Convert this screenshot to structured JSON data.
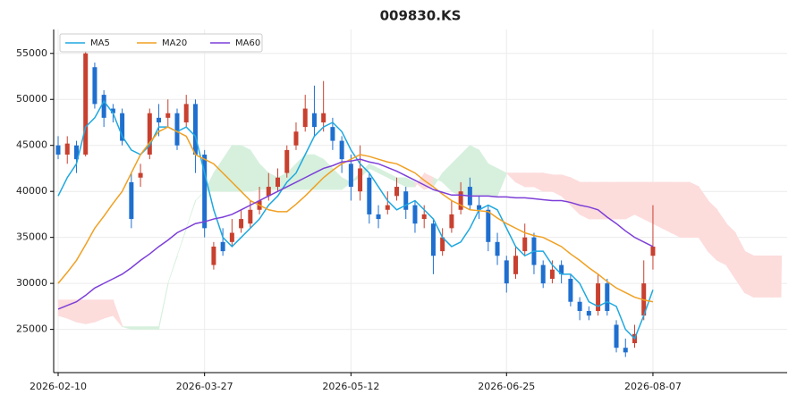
{
  "chart_data": {
    "type": "candlestick",
    "title": "009830.KS",
    "categories": [
      "2026-02-10",
      null,
      null,
      null,
      null,
      null,
      null,
      null,
      null,
      null,
      null,
      null,
      null,
      null,
      null,
      null,
      "2026-03-27",
      null,
      null,
      null,
      null,
      null,
      null,
      null,
      null,
      null,
      null,
      null,
      null,
      null,
      null,
      null,
      "2026-05-12",
      null,
      null,
      null,
      null,
      null,
      null,
      null,
      null,
      null,
      null,
      null,
      null,
      null,
      null,
      null,
      null,
      "2026-06-25",
      null,
      null,
      null,
      null,
      null,
      null,
      null,
      null,
      null,
      null,
      null,
      null,
      null,
      null,
      null,
      "2026-08-07",
      null,
      null,
      null,
      null,
      null,
      null,
      null,
      null,
      null,
      null,
      null,
      null,
      null,
      null
    ],
    "open": [
      45000,
      44000,
      45000,
      44000,
      53500,
      50500,
      49000,
      48500,
      41000,
      41500,
      44000,
      48000,
      48000,
      48500,
      47500,
      49500,
      44000,
      32000,
      34500,
      34500,
      36000,
      36500,
      38000,
      39500,
      40500,
      42000,
      45000,
      47000,
      48500,
      47500,
      47000,
      45500,
      43000,
      40000,
      41500,
      37500,
      38000,
      39500,
      40000,
      38500,
      37000,
      36500,
      33500,
      36000,
      38000,
      40500,
      38500,
      38000,
      34500,
      32500,
      31000,
      33500,
      35000,
      32000,
      30500,
      32000,
      30500,
      28000,
      27000,
      27000,
      30000,
      25500,
      23000,
      23500,
      26500,
      33000,
      null,
      null,
      null,
      null,
      null,
      null,
      null,
      null,
      null,
      null,
      null,
      null,
      null,
      null
    ],
    "high": [
      46000,
      46000,
      45500,
      55500,
      54000,
      51000,
      49500,
      49000,
      42000,
      43000,
      49000,
      49500,
      50000,
      49000,
      50500,
      50000,
      44500,
      34500,
      36000,
      37000,
      38000,
      39000,
      40500,
      42000,
      42500,
      45000,
      47500,
      50500,
      51500,
      52000,
      48000,
      46000,
      44000,
      45000,
      42000,
      38500,
      40000,
      41500,
      40500,
      39000,
      38500,
      37000,
      36000,
      39000,
      41000,
      41500,
      39500,
      38500,
      35500,
      33000,
      34000,
      36500,
      35500,
      32500,
      32500,
      32500,
      31000,
      28500,
      27500,
      31000,
      30500,
      26000,
      24000,
      25500,
      32500,
      38500,
      null,
      null,
      null,
      null,
      null,
      null,
      null,
      null,
      null,
      null,
      null,
      null,
      null,
      null
    ],
    "low": [
      43500,
      43000,
      42000,
      43800,
      49000,
      47000,
      47500,
      45000,
      36000,
      40500,
      43500,
      46000,
      47000,
      44500,
      47000,
      42000,
      35000,
      31500,
      33000,
      34000,
      35500,
      36000,
      37500,
      39000,
      40000,
      41500,
      44500,
      46500,
      46000,
      46500,
      44500,
      42000,
      39000,
      39000,
      36500,
      36000,
      37500,
      39000,
      37000,
      35500,
      36000,
      31000,
      33000,
      35500,
      37500,
      38000,
      37000,
      33500,
      32000,
      29000,
      30500,
      33000,
      31000,
      29500,
      30000,
      30000,
      27500,
      26000,
      26000,
      26500,
      26500,
      22500,
      22000,
      23000,
      26000,
      31500,
      null,
      null,
      null,
      null,
      null,
      null,
      null,
      null,
      null,
      null,
      null,
      null,
      null,
      null
    ],
    "close": [
      44000,
      45200,
      43500,
      55000,
      49500,
      48000,
      48500,
      45500,
      37000,
      42000,
      48500,
      47500,
      48500,
      45000,
      49500,
      44000,
      36000,
      34000,
      33500,
      35500,
      37000,
      38000,
      39000,
      40500,
      41500,
      44500,
      46500,
      49000,
      47000,
      48500,
      45500,
      43500,
      40500,
      42500,
      37500,
      37000,
      38500,
      40500,
      38000,
      36500,
      37500,
      33000,
      35000,
      37500,
      40000,
      38500,
      38000,
      34500,
      33000,
      30000,
      33000,
      35000,
      32000,
      30000,
      31500,
      31000,
      28000,
      27000,
      26500,
      30000,
      27000,
      23000,
      22500,
      24500,
      30000,
      34000,
      null,
      null,
      null,
      null,
      null,
      null,
      null,
      null,
      null,
      null,
      null,
      null,
      null,
      null
    ],
    "up_color": "#c8402f",
    "down_color": "#1f6fcf",
    "series": [
      {
        "name": "MA5",
        "color": "#1ea8e0",
        "values": [
          39500,
          41500,
          43000,
          47000,
          48000,
          49800,
          48500,
          46000,
          44500,
          44000,
          45000,
          47000,
          47000,
          46500,
          47000,
          46000,
          42000,
          38000,
          35000,
          34000,
          35000,
          36000,
          37000,
          38500,
          39500,
          41000,
          42000,
          44000,
          46000,
          47000,
          47500,
          46500,
          44500,
          43000,
          42000,
          40500,
          39000,
          38000,
          38500,
          39000,
          38000,
          37000,
          35000,
          34000,
          34500,
          36000,
          38000,
          38500,
          38000,
          36000,
          34000,
          33000,
          33500,
          33500,
          32000,
          31000,
          31000,
          30000,
          28000,
          27500,
          28000,
          27500,
          25000,
          24000,
          26500,
          29300,
          null,
          null,
          null,
          null,
          null,
          null,
          null,
          null,
          null,
          null,
          null,
          null,
          null,
          null
        ]
      },
      {
        "name": "MA20",
        "color": "#f0a022",
        "values": [
          30000,
          31200,
          32500,
          34200,
          36000,
          37300,
          38700,
          40000,
          42000,
          44000,
          45300,
          46500,
          47000,
          46500,
          46000,
          44000,
          43500,
          43000,
          42000,
          41000,
          40000,
          39000,
          38500,
          38000,
          37800,
          37800,
          38600,
          39500,
          40500,
          41500,
          42300,
          43000,
          43500,
          44000,
          43800,
          43500,
          43200,
          43000,
          42500,
          42000,
          41200,
          40500,
          39700,
          39000,
          38500,
          38000,
          37900,
          37800,
          37100,
          36500,
          36000,
          35500,
          35200,
          35000,
          34500,
          34000,
          33200,
          32500,
          31700,
          31000,
          30200,
          29500,
          29000,
          28500,
          28200,
          28000,
          null,
          null,
          null,
          null,
          null,
          null,
          null,
          null,
          null,
          null,
          null,
          null,
          null,
          null
        ]
      },
      {
        "name": "MA60",
        "color": "#7d3fd8",
        "values": [
          27200,
          27600,
          28000,
          28700,
          29500,
          30000,
          30500,
          31000,
          31700,
          32500,
          33200,
          34000,
          34700,
          35500,
          36000,
          36500,
          36700,
          37000,
          37200,
          37500,
          38000,
          38500,
          39000,
          39500,
          40000,
          40500,
          41000,
          41500,
          42000,
          42500,
          42800,
          43200,
          43300,
          43500,
          43200,
          43000,
          42600,
          42200,
          41700,
          41200,
          40700,
          40200,
          39900,
          39600,
          39600,
          39500,
          39500,
          39500,
          39400,
          39400,
          39300,
          39300,
          39200,
          39100,
          39000,
          39000,
          38800,
          38500,
          38300,
          38000,
          37200,
          36500,
          35700,
          35000,
          34500,
          34000,
          null,
          null,
          null,
          null,
          null,
          null,
          null,
          null,
          null,
          null,
          null,
          null,
          null,
          null
        ]
      }
    ],
    "cloud": {
      "up_color": "#d6f0dd",
      "down_color": "#fddcdc",
      "span_a": [
        26500,
        26200,
        25800,
        25600,
        25800,
        26200,
        26500,
        25300,
        25300,
        25300,
        25300,
        25300,
        30000,
        33000,
        36000,
        39000,
        40000,
        42000,
        43500,
        45000,
        45000,
        44500,
        43000,
        42000,
        41500,
        42000,
        43000,
        44000,
        44000,
        43500,
        42500,
        41500,
        41000,
        42000,
        43000,
        42500,
        42000,
        41500,
        41500,
        41000,
        40200,
        40500,
        42000,
        43000,
        44000,
        45000,
        44500,
        43000,
        42500,
        42000,
        41000,
        40500,
        40500,
        40000,
        40000,
        39500,
        38500,
        37500,
        37000,
        37000,
        37000,
        37000,
        37000,
        37500,
        37000,
        36500,
        36000,
        35500,
        35000,
        35000,
        35000,
        33500,
        32500,
        32000,
        30500,
        29000,
        28500,
        28500,
        28500,
        28500
      ],
      "span_b": [
        28200,
        28200,
        28200,
        28200,
        28200,
        28200,
        28200,
        25300,
        25000,
        25000,
        25000,
        25000,
        30000,
        33000,
        36000,
        39000,
        40000,
        40000,
        40000,
        40000,
        40000,
        40000,
        40200,
        40200,
        40200,
        40200,
        40200,
        40200,
        40200,
        40200,
        40200,
        40200,
        41000,
        41500,
        42500,
        42000,
        41500,
        41000,
        40500,
        40500,
        42000,
        41500,
        41000,
        40000,
        39500,
        39500,
        39500,
        39500,
        39500,
        42000,
        42000,
        42000,
        42000,
        42000,
        41800,
        41800,
        41500,
        41000,
        41000,
        41000,
        41000,
        41000,
        41000,
        41000,
        41000,
        41000,
        41000,
        41000,
        41000,
        41000,
        40500,
        39000,
        38000,
        36500,
        35500,
        33500,
        33000,
        33000,
        33000,
        33000
      ]
    },
    "ylim": [
      20300,
      57600
    ],
    "yticks": [
      25000,
      30000,
      35000,
      40000,
      45000,
      50000,
      55000
    ],
    "grid": true,
    "legend": "upper left"
  }
}
